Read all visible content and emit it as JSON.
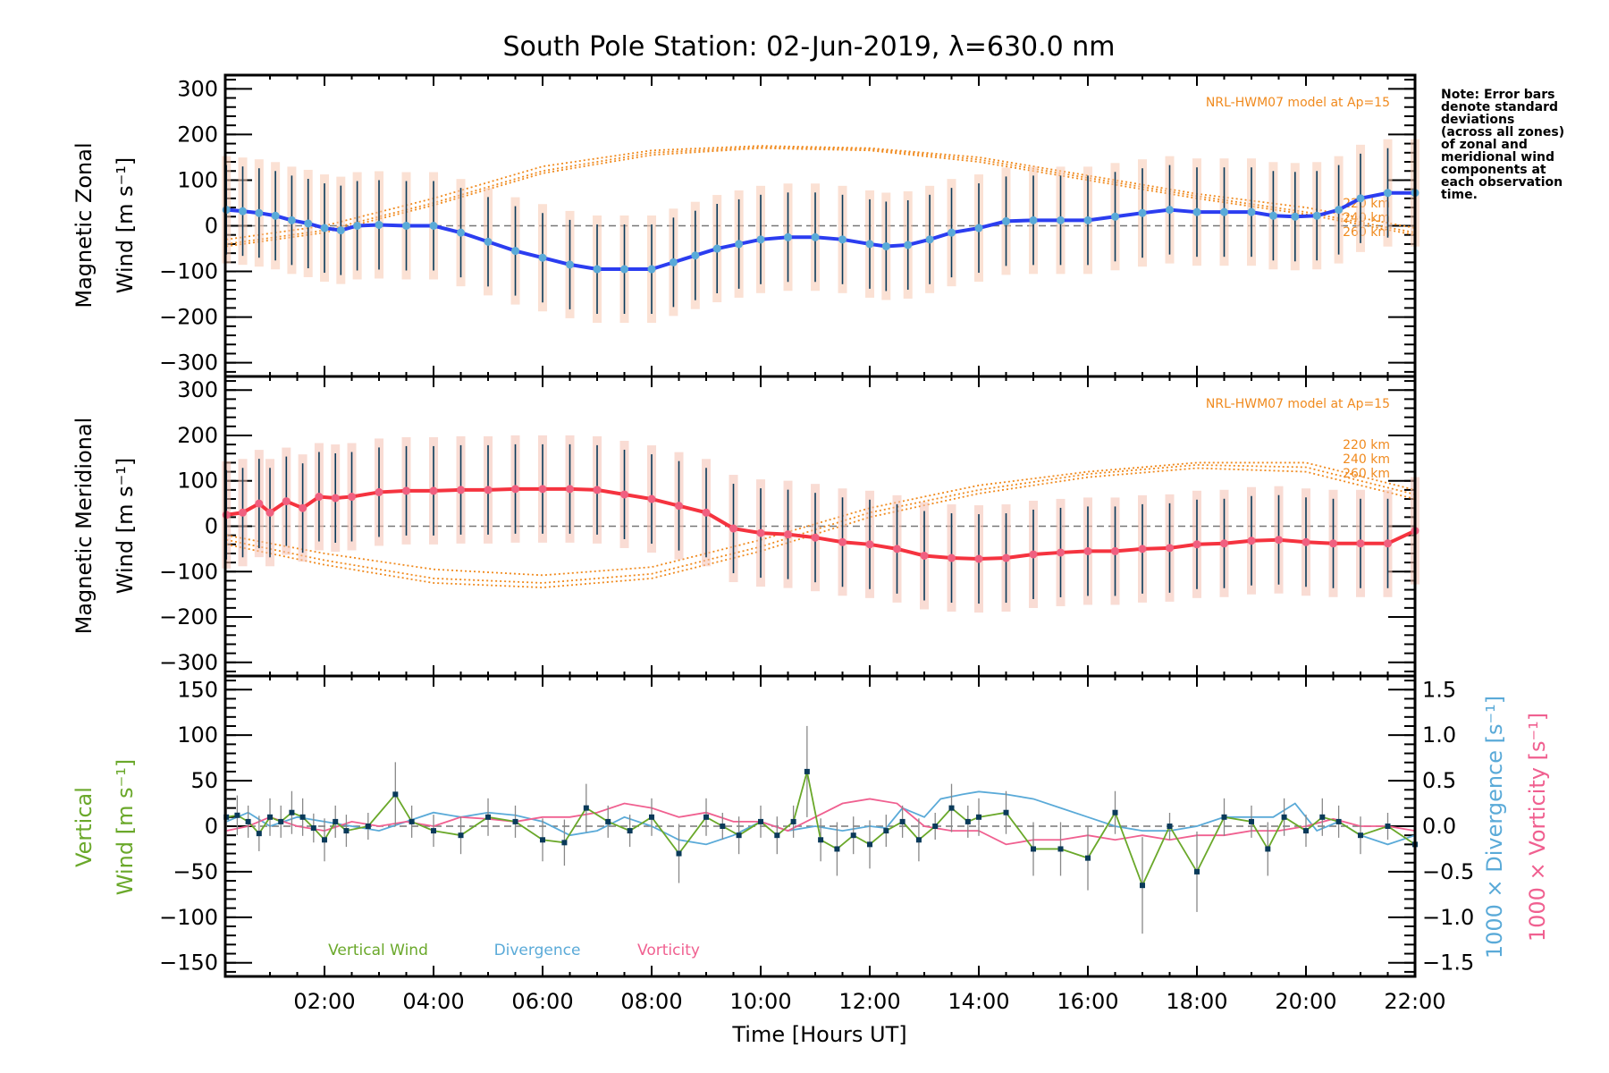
{
  "chart_data": [
    {
      "type": "line",
      "panel": "zonal",
      "title": "South Pole Station: 02-Jun-2019, λ=630.0 nm",
      "ylabel_line1": "Magnetic Zonal",
      "ylabel_line2": "Wind [m s⁻¹]",
      "ylim": [
        -330,
        330
      ],
      "yticks": [
        -300,
        -200,
        -100,
        0,
        100,
        200,
        300
      ],
      "model_label": "NRL-HWM07 model at Ap=15",
      "model_altitudes": [
        "220 km",
        "240 km",
        "260 km"
      ],
      "colors": {
        "main": "#2b3df0",
        "points": "#5aaad8",
        "model": "#f08a1e",
        "errbar": "#0a3a5a"
      },
      "series": [
        {
          "name": "Measured zonal wind",
          "x": [
            0.2,
            0.5,
            0.8,
            1.1,
            1.4,
            1.7,
            2.0,
            2.3,
            2.6,
            3.0,
            3.5,
            4.0,
            4.5,
            5.0,
            5.5,
            6.0,
            6.5,
            7.0,
            7.5,
            8.0,
            8.4,
            8.8,
            9.2,
            9.6,
            10.0,
            10.5,
            11.0,
            11.5,
            12.0,
            12.3,
            12.7,
            13.1,
            13.5,
            14.0,
            14.5,
            15.0,
            15.5,
            16.0,
            16.5,
            17.0,
            17.5,
            18.0,
            18.5,
            19.0,
            19.4,
            19.8,
            20.2,
            20.6,
            21.0,
            21.5,
            22.0
          ],
          "y": [
            35,
            32,
            28,
            22,
            12,
            5,
            -5,
            -10,
            0,
            2,
            0,
            0,
            -15,
            -35,
            -55,
            -70,
            -85,
            -95,
            -95,
            -95,
            -80,
            -65,
            -50,
            -40,
            -30,
            -25,
            -25,
            -30,
            -40,
            -45,
            -42,
            -30,
            -15,
            -5,
            10,
            12,
            12,
            12,
            20,
            28,
            35,
            30,
            30,
            30,
            22,
            20,
            22,
            35,
            60,
            72,
            72
          ]
        },
        {
          "name": "HWM07 220 km",
          "x": [
            0.2,
            2,
            4,
            6,
            8,
            10,
            12,
            14,
            16,
            18,
            20,
            22
          ],
          "y": [
            -30,
            0,
            60,
            130,
            165,
            175,
            170,
            150,
            110,
            70,
            40,
            -5
          ]
        },
        {
          "name": "HWM07 240 km",
          "x": [
            0.2,
            2,
            4,
            6,
            8,
            10,
            12,
            14,
            16,
            18,
            20,
            22
          ],
          "y": [
            -40,
            -10,
            50,
            120,
            160,
            172,
            168,
            145,
            105,
            65,
            30,
            -15
          ]
        },
        {
          "name": "HWM07 260 km",
          "x": [
            0.2,
            2,
            4,
            6,
            8,
            10,
            12,
            14,
            16,
            18,
            20,
            22
          ],
          "y": [
            -45,
            -15,
            45,
            115,
            155,
            170,
            165,
            140,
            100,
            60,
            25,
            -20
          ]
        }
      ]
    },
    {
      "type": "line",
      "panel": "meridional",
      "ylabel_line1": "Magnetic Meridional",
      "ylabel_line2": "Wind [m s⁻¹]",
      "ylim": [
        -330,
        330
      ],
      "yticks": [
        -300,
        -200,
        -100,
        0,
        100,
        200,
        300
      ],
      "model_label": "NRL-HWM07 model at Ap=15",
      "model_altitudes": [
        "220 km",
        "240 km",
        "260 km"
      ],
      "colors": {
        "main": "#f5333f",
        "points": "#f06080",
        "model": "#f08a1e",
        "errbar": "#0a3a5a"
      },
      "series": [
        {
          "name": "Measured meridional wind",
          "x": [
            0.2,
            0.5,
            0.8,
            1.0,
            1.3,
            1.6,
            1.9,
            2.2,
            2.5,
            3.0,
            3.5,
            4.0,
            4.5,
            5.0,
            5.5,
            6.0,
            6.5,
            7.0,
            7.5,
            8.0,
            8.5,
            9.0,
            9.5,
            10.0,
            10.5,
            11.0,
            11.5,
            12.0,
            12.5,
            13.0,
            13.5,
            14.0,
            14.5,
            15.0,
            15.5,
            16.0,
            16.5,
            17.0,
            17.5,
            18.0,
            18.5,
            19.0,
            19.5,
            20.0,
            20.5,
            21.0,
            21.5,
            22.0
          ],
          "y": [
            25,
            30,
            50,
            30,
            55,
            40,
            65,
            62,
            65,
            75,
            78,
            78,
            80,
            80,
            82,
            82,
            82,
            80,
            70,
            60,
            45,
            30,
            -5,
            -15,
            -18,
            -25,
            -35,
            -40,
            -50,
            -65,
            -70,
            -72,
            -70,
            -62,
            -58,
            -55,
            -55,
            -50,
            -48,
            -40,
            -38,
            -32,
            -30,
            -35,
            -38,
            -38,
            -38,
            -10
          ]
        },
        {
          "name": "HWM07 220 km",
          "x": [
            0.2,
            2,
            4,
            6,
            8,
            10,
            12,
            14,
            16,
            18,
            20,
            22
          ],
          "y": [
            -20,
            -60,
            -95,
            -108,
            -90,
            -30,
            40,
            90,
            120,
            140,
            140,
            80
          ]
        },
        {
          "name": "HWM07 240 km",
          "x": [
            0.2,
            2,
            4,
            6,
            8,
            10,
            12,
            14,
            16,
            18,
            20,
            22
          ],
          "y": [
            -30,
            -75,
            -115,
            -125,
            -105,
            -45,
            30,
            80,
            115,
            135,
            130,
            70
          ]
        },
        {
          "name": "HWM07 260 km",
          "x": [
            0.2,
            2,
            4,
            6,
            8,
            10,
            12,
            14,
            16,
            18,
            20,
            22
          ],
          "y": [
            -40,
            -85,
            -125,
            -135,
            -115,
            -55,
            20,
            72,
            108,
            128,
            120,
            60
          ]
        }
      ]
    },
    {
      "type": "line",
      "panel": "vertical",
      "ylabel_line1": "Vertical",
      "ylabel_line2": "Wind [m s⁻¹]",
      "ylim": [
        -165,
        165
      ],
      "yticks": [
        -150,
        -100,
        -50,
        0,
        50,
        100,
        150
      ],
      "y2label_div": "1000 × Divergence [s⁻¹]",
      "y2label_vor": "1000 × Vorticity [s⁻¹]",
      "y2lim": [
        -1.65,
        1.65
      ],
      "y2ticks": [
        "−1.5",
        "−1.0",
        "−0.5",
        "0.0",
        "0.5",
        "1.0",
        "1.5"
      ],
      "y2tick_values": [
        -1.5,
        -1.0,
        -0.5,
        0.0,
        0.5,
        1.0,
        1.5
      ],
      "xlabel": "Time [Hours UT]",
      "xticks": [
        "02:00",
        "04:00",
        "06:00",
        "08:00",
        "10:00",
        "12:00",
        "14:00",
        "16:00",
        "18:00",
        "20:00",
        "22:00"
      ],
      "xtick_values": [
        2,
        4,
        6,
        8,
        10,
        12,
        14,
        16,
        18,
        20,
        22
      ],
      "xlim": [
        0.18,
        22.0
      ],
      "legend": [
        {
          "label": "Vertical Wind",
          "color": "#6aa82a"
        },
        {
          "label": "Divergence",
          "color": "#5aaad8"
        },
        {
          "label": "Vorticity",
          "color": "#f06090"
        }
      ],
      "series": [
        {
          "name": "Vertical Wind",
          "x": [
            0.2,
            0.4,
            0.6,
            0.8,
            1.0,
            1.2,
            1.4,
            1.6,
            1.8,
            2.0,
            2.2,
            2.4,
            2.8,
            3.3,
            3.6,
            4.0,
            4.5,
            5.0,
            5.5,
            6.0,
            6.4,
            6.8,
            7.2,
            7.6,
            8.0,
            8.5,
            9.0,
            9.3,
            9.6,
            10.0,
            10.3,
            10.6,
            10.85,
            11.1,
            11.4,
            11.7,
            12.0,
            12.3,
            12.6,
            12.9,
            13.2,
            13.5,
            13.8,
            14.0,
            14.5,
            15.0,
            15.5,
            16.0,
            16.5,
            17.0,
            17.5,
            18.0,
            18.5,
            19.0,
            19.3,
            19.6,
            20.0,
            20.3,
            20.6,
            21.0,
            21.5,
            22.0
          ],
          "y": [
            10,
            12,
            5,
            -8,
            10,
            5,
            15,
            10,
            -2,
            -15,
            5,
            -5,
            0,
            35,
            5,
            -5,
            -10,
            10,
            5,
            -15,
            -18,
            20,
            5,
            -5,
            10,
            -30,
            10,
            0,
            -10,
            5,
            -10,
            5,
            60,
            -15,
            -25,
            -10,
            -20,
            -5,
            5,
            -15,
            0,
            20,
            5,
            10,
            15,
            -25,
            -25,
            -35,
            15,
            -65,
            0,
            -50,
            10,
            5,
            -25,
            10,
            -5,
            10,
            5,
            -10,
            0,
            -20
          ]
        },
        {
          "name": "Divergence",
          "x": [
            0.2,
            0.6,
            1.0,
            1.5,
            2.0,
            2.5,
            3.0,
            3.5,
            4.0,
            4.5,
            5.0,
            5.5,
            6.0,
            6.5,
            7.0,
            7.5,
            8.0,
            8.5,
            9.0,
            9.5,
            10.0,
            10.5,
            11.0,
            11.5,
            12.0,
            12.3,
            12.6,
            13.0,
            13.3,
            13.7,
            14.0,
            14.5,
            15.0,
            15.5,
            16.0,
            16.5,
            17.0,
            17.5,
            18.0,
            18.5,
            19.0,
            19.4,
            19.8,
            20.2,
            20.6,
            21.0,
            21.5,
            22.0
          ],
          "y": [
            0.05,
            0.15,
            0.0,
            0.1,
            0.05,
            0.0,
            -0.05,
            0.05,
            0.15,
            0.1,
            0.15,
            0.12,
            0.05,
            -0.1,
            -0.05,
            0.1,
            0.0,
            -0.15,
            -0.2,
            -0.1,
            0.05,
            -0.05,
            0.0,
            -0.05,
            0.0,
            -0.02,
            0.2,
            0.1,
            0.3,
            0.35,
            0.38,
            0.35,
            0.3,
            0.2,
            0.1,
            0.0,
            -0.05,
            -0.05,
            0.0,
            0.1,
            0.1,
            0.1,
            0.25,
            -0.05,
            0.05,
            -0.1,
            -0.2,
            -0.1
          ]
        },
        {
          "name": "Vorticity",
          "x": [
            0.2,
            0.6,
            1.0,
            1.5,
            2.0,
            2.5,
            3.0,
            3.5,
            4.0,
            4.5,
            5.0,
            5.5,
            6.0,
            6.5,
            7.0,
            7.5,
            8.0,
            8.5,
            9.0,
            9.5,
            10.0,
            10.5,
            11.0,
            11.5,
            12.0,
            12.5,
            13.0,
            13.5,
            14.0,
            14.5,
            15.0,
            15.5,
            16.0,
            16.5,
            17.0,
            17.5,
            18.0,
            18.5,
            19.0,
            19.5,
            20.0,
            20.5,
            21.0,
            21.5,
            22.0
          ],
          "y": [
            -0.05,
            0.0,
            0.1,
            0.0,
            -0.05,
            0.05,
            0.0,
            0.05,
            0.0,
            0.1,
            0.08,
            0.05,
            0.1,
            0.1,
            0.15,
            0.25,
            0.2,
            0.1,
            0.15,
            0.05,
            0.05,
            -0.05,
            0.1,
            0.25,
            0.3,
            0.25,
            0.0,
            -0.05,
            -0.05,
            -0.2,
            -0.15,
            -0.15,
            -0.1,
            -0.15,
            -0.1,
            -0.15,
            -0.1,
            -0.1,
            -0.05,
            -0.05,
            0.0,
            0.08,
            0.0,
            0.0,
            -0.05
          ]
        }
      ]
    }
  ],
  "note": [
    "Note: Error bars",
    "denote standard",
    "deviations",
    "(across all zones)",
    "of zonal and",
    "meridional wind",
    "components at",
    "each observation",
    "time."
  ]
}
